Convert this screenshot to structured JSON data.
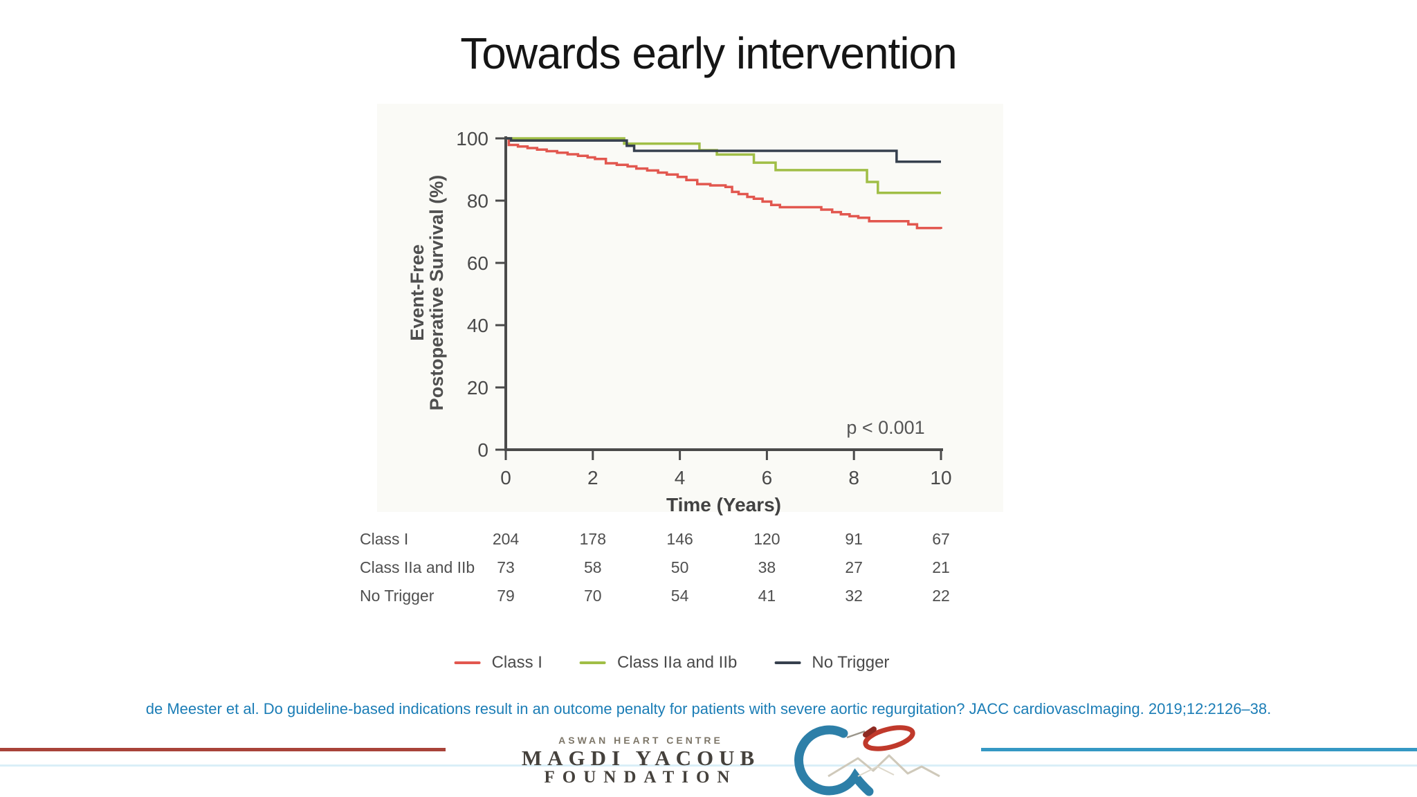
{
  "slide": {
    "title": "Towards early intervention"
  },
  "chart_data": {
    "type": "line",
    "subtype": "kaplan-meier-step",
    "xlabel": "Time (Years)",
    "ylabel_lines": [
      "Event-Free",
      "Postoperative Survival (%)"
    ],
    "annotation": "p < 0.001",
    "xticks": [
      0,
      2,
      4,
      6,
      8,
      10
    ],
    "yticks": [
      0,
      20,
      40,
      60,
      80,
      100
    ],
    "xlim": [
      0,
      10
    ],
    "ylim": [
      0,
      100
    ],
    "grid": false,
    "legend_position": "bottom",
    "series": [
      {
        "name": "Class I",
        "color": "#e2574f",
        "points": [
          [
            0,
            100
          ],
          [
            0.07,
            97.9
          ],
          [
            0.28,
            97.4
          ],
          [
            0.5,
            96.9
          ],
          [
            0.72,
            96.4
          ],
          [
            0.94,
            95.9
          ],
          [
            1.18,
            95.4
          ],
          [
            1.42,
            94.9
          ],
          [
            1.66,
            94.4
          ],
          [
            1.88,
            93.9
          ],
          [
            2.05,
            93.4
          ],
          [
            2.3,
            92.0
          ],
          [
            2.55,
            91.5
          ],
          [
            2.8,
            91.0
          ],
          [
            3.0,
            90.3
          ],
          [
            3.25,
            89.7
          ],
          [
            3.5,
            89.0
          ],
          [
            3.7,
            88.4
          ],
          [
            3.95,
            87.6
          ],
          [
            4.15,
            86.6
          ],
          [
            4.4,
            85.3
          ],
          [
            4.7,
            84.9
          ],
          [
            5.05,
            84.4
          ],
          [
            5.2,
            82.8
          ],
          [
            5.35,
            82.1
          ],
          [
            5.55,
            81.2
          ],
          [
            5.7,
            80.6
          ],
          [
            5.9,
            79.7
          ],
          [
            6.1,
            78.6
          ],
          [
            6.3,
            77.9
          ],
          [
            7.25,
            77.1
          ],
          [
            7.5,
            76.3
          ],
          [
            7.7,
            75.6
          ],
          [
            7.9,
            75.0
          ],
          [
            8.1,
            74.5
          ],
          [
            8.35,
            73.4
          ],
          [
            9.25,
            72.4
          ],
          [
            9.45,
            71.2
          ],
          [
            10,
            70.9
          ]
        ]
      },
      {
        "name": "Class IIa and IIb",
        "color": "#a0be46",
        "points": [
          [
            0,
            100
          ],
          [
            2.72,
            98.3
          ],
          [
            4.45,
            96.2
          ],
          [
            4.85,
            94.8
          ],
          [
            5.7,
            92.2
          ],
          [
            6.2,
            89.8
          ],
          [
            8.3,
            86.0
          ],
          [
            8.55,
            82.5
          ],
          [
            10,
            82.5
          ]
        ]
      },
      {
        "name": "No Trigger",
        "color": "#36404e",
        "points": [
          [
            0,
            100
          ],
          [
            0.12,
            99.3
          ],
          [
            2.78,
            97.6
          ],
          [
            2.95,
            96.0
          ],
          [
            8.98,
            92.5
          ],
          [
            10,
            92.5
          ]
        ]
      }
    ],
    "at_risk": {
      "rows": [
        {
          "label": "Class I",
          "counts": [
            "204",
            "178",
            "146",
            "120",
            "91",
            "67"
          ]
        },
        {
          "label": "Class IIa and IIb",
          "counts": [
            "73",
            "58",
            "50",
            "38",
            "27",
            "21"
          ]
        },
        {
          "label": "No Trigger",
          "counts": [
            "79",
            "70",
            "54",
            "41",
            "32",
            "22"
          ]
        }
      ]
    },
    "legend": [
      {
        "label": "Class I",
        "color": "#e2574f"
      },
      {
        "label": "Class IIa and IIb",
        "color": "#a0be46"
      },
      {
        "label": "No Trigger",
        "color": "#36404e"
      }
    ]
  },
  "citation": {
    "text": "de Meester et al. Do guideline-based indications result in an outcome penalty for patients with severe aortic regurgitation? JACC cardiovascImaging. 2019;12:2126–38.",
    "color": "#1b7db6"
  },
  "footer": {
    "org_small": "ASWAN HEART CENTRE",
    "org_line1": "MAGDI YACOUB",
    "org_line2": "FOUNDATION",
    "red_line_color": "#a84339",
    "blue_line_color": "#3598c4",
    "logo_colors": {
      "heart_arc": "#2d7fa8",
      "loop": "#c0392b",
      "mountains": "#cfc9ba"
    }
  }
}
